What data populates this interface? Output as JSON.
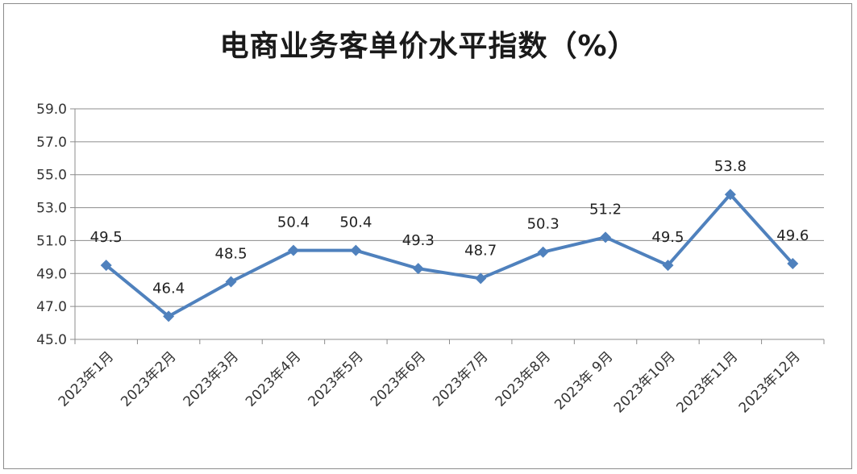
{
  "chart_data": {
    "type": "line",
    "title": "电商业务客单价水平指数（%）",
    "categories": [
      "2023年1月",
      "2023年2月",
      "2023年3月",
      "2023年4月",
      "2023年5月",
      "2023年6月",
      "2023年7月",
      "2023年8月",
      "2023年 9月",
      "2023年10月",
      "2023年11月",
      "2023年12月"
    ],
    "series": [
      {
        "values": [
          49.5,
          46.4,
          48.5,
          50.4,
          50.4,
          49.3,
          48.7,
          50.3,
          51.2,
          49.5,
          53.8,
          49.6
        ]
      }
    ],
    "data_labels": [
      "49.5",
      "46.4",
      "48.5",
      "50.4",
      "50.4",
      "49.3",
      "48.7",
      "50.3",
      "51.2",
      "49.5",
      "53.8",
      "49.6"
    ],
    "y_ticks": [
      "45.0",
      "47.0",
      "49.0",
      "51.0",
      "53.0",
      "55.0",
      "57.0",
      "59.0"
    ],
    "ylim": [
      45,
      59
    ],
    "grid": true,
    "legend": "none",
    "line_color": "#4f81bd"
  }
}
